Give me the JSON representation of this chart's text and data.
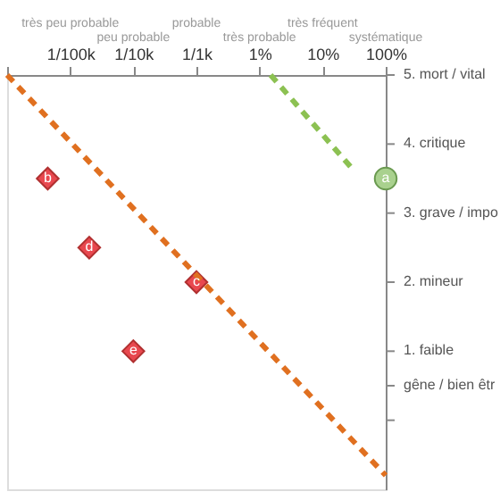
{
  "chart_data": {
    "type": "scatter",
    "xlim": [
      1e-06,
      1
    ],
    "ylim": [
      -1,
      5
    ],
    "log": "x",
    "grid": false,
    "xticks": [
      {
        "value": 1e-06,
        "label": null
      },
      {
        "value": 1e-05,
        "label": "1/100k"
      },
      {
        "value": 0.0001,
        "label": "1/10k"
      },
      {
        "value": 0.001,
        "label": "1/1k"
      },
      {
        "value": 0.01,
        "label": "1%"
      },
      {
        "value": 0.1,
        "label": "10%"
      },
      {
        "value": 1,
        "label": "100%"
      }
    ],
    "yticks": [
      {
        "value": 5,
        "label": "5. mort / vital"
      },
      {
        "value": 4,
        "label": "4. critique"
      },
      {
        "value": 3,
        "label": "3. grave / impo"
      },
      {
        "value": 2,
        "label": "2. mineur"
      },
      {
        "value": 1,
        "label": "1. faible"
      },
      {
        "value": 0.5,
        "label": "gêne / bien êtr"
      },
      {
        "value": 0,
        "label": null
      }
    ],
    "series": [
      {
        "color": "#e8484f",
        "marker": "diamond",
        "x": [
          4.4e-06,
          2e-05,
          0.001,
          0.0001
        ],
        "values": [
          3.5,
          2.5,
          2,
          1
        ]
      },
      {
        "color": "#a9d18e",
        "marker": "circle",
        "x": [
          1
        ],
        "values": [
          3.5
        ]
      },
      {
        "type": "line",
        "color": "#e07020",
        "line_style": "dashed",
        "x": [
          1e-06,
          1
        ],
        "values": [
          5,
          -0.8
        ]
      },
      {
        "type": "line",
        "color": "#8cc152",
        "line_style": "dashed",
        "x": [
          0.015,
          0.29
        ],
        "values": [
          5,
          3.65
        ]
      }
    ],
    "annotations": [
      "très peu probable",
      "peu probable",
      "probable",
      "très probable",
      "très fréquent",
      "systématique",
      {
        "text": "b",
        "x": 4.4e-06,
        "y": 3.5
      },
      {
        "text": "d",
        "x": 2e-05,
        "y": 2.5
      },
      {
        "text": "c",
        "x": 0.001,
        "y": 2
      },
      {
        "text": "e",
        "x": 0.0001,
        "y": 1
      },
      {
        "text": "a",
        "x": 1,
        "y": 3.5
      }
    ]
  }
}
